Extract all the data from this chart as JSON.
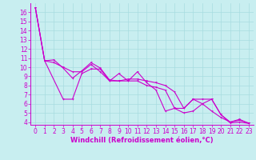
{
  "xlabel": "Windchill (Refroidissement éolien,°C)",
  "bg_color": "#c8eef0",
  "grid_color": "#a8dce0",
  "line_color": "#cc00cc",
  "xlim": [
    -0.5,
    23.5
  ],
  "ylim": [
    3.7,
    17.0
  ],
  "yticks": [
    4,
    5,
    6,
    7,
    8,
    9,
    10,
    11,
    12,
    13,
    14,
    15,
    16
  ],
  "xticks": [
    0,
    1,
    2,
    3,
    4,
    5,
    6,
    7,
    8,
    9,
    10,
    11,
    12,
    13,
    14,
    15,
    16,
    17,
    18,
    19,
    20,
    21,
    22,
    23
  ],
  "series1": [
    [
      0,
      16.5
    ],
    [
      1,
      10.7
    ],
    [
      2,
      10.8
    ],
    [
      3,
      9.9
    ],
    [
      4,
      8.8
    ],
    [
      5,
      9.6
    ],
    [
      6,
      10.5
    ],
    [
      7,
      9.9
    ],
    [
      8,
      8.6
    ],
    [
      9,
      8.5
    ],
    [
      10,
      8.7
    ],
    [
      11,
      8.7
    ],
    [
      12,
      8.5
    ],
    [
      13,
      8.3
    ],
    [
      14,
      8.0
    ],
    [
      15,
      7.3
    ],
    [
      16,
      5.5
    ],
    [
      17,
      6.5
    ],
    [
      18,
      6.5
    ],
    [
      19,
      6.5
    ],
    [
      20,
      4.8
    ],
    [
      21,
      4.0
    ],
    [
      22,
      4.2
    ],
    [
      23,
      3.9
    ]
  ],
  "series2": [
    [
      0,
      16.5
    ],
    [
      1,
      10.7
    ],
    [
      3,
      6.5
    ],
    [
      4,
      6.5
    ],
    [
      5,
      9.3
    ],
    [
      6,
      9.8
    ],
    [
      7,
      9.8
    ],
    [
      8,
      8.5
    ],
    [
      9,
      8.5
    ],
    [
      10,
      8.5
    ],
    [
      11,
      9.5
    ],
    [
      12,
      8.3
    ],
    [
      13,
      7.5
    ],
    [
      14,
      5.2
    ],
    [
      15,
      5.5
    ],
    [
      16,
      5.0
    ],
    [
      17,
      5.2
    ],
    [
      18,
      6.0
    ],
    [
      19,
      5.2
    ],
    [
      20,
      4.5
    ],
    [
      21,
      4.0
    ],
    [
      22,
      4.3
    ],
    [
      23,
      3.85
    ]
  ],
  "series3": [
    [
      0,
      16.5
    ],
    [
      1,
      10.7
    ],
    [
      2,
      10.5
    ],
    [
      3,
      10.0
    ],
    [
      4,
      9.5
    ],
    [
      5,
      9.5
    ],
    [
      6,
      10.3
    ],
    [
      7,
      9.5
    ],
    [
      8,
      8.5
    ],
    [
      9,
      9.3
    ],
    [
      10,
      8.5
    ],
    [
      11,
      8.5
    ],
    [
      12,
      8.0
    ],
    [
      13,
      7.8
    ],
    [
      14,
      7.5
    ],
    [
      15,
      5.5
    ],
    [
      16,
      5.5
    ],
    [
      17,
      6.5
    ],
    [
      18,
      6.0
    ],
    [
      19,
      6.5
    ],
    [
      20,
      4.8
    ],
    [
      21,
      3.9
    ],
    [
      22,
      4.0
    ],
    [
      23,
      3.85
    ]
  ],
  "tick_fontsize": 5.5,
  "xlabel_fontsize": 6.0,
  "marker_size": 1.8,
  "line_width": 0.8
}
